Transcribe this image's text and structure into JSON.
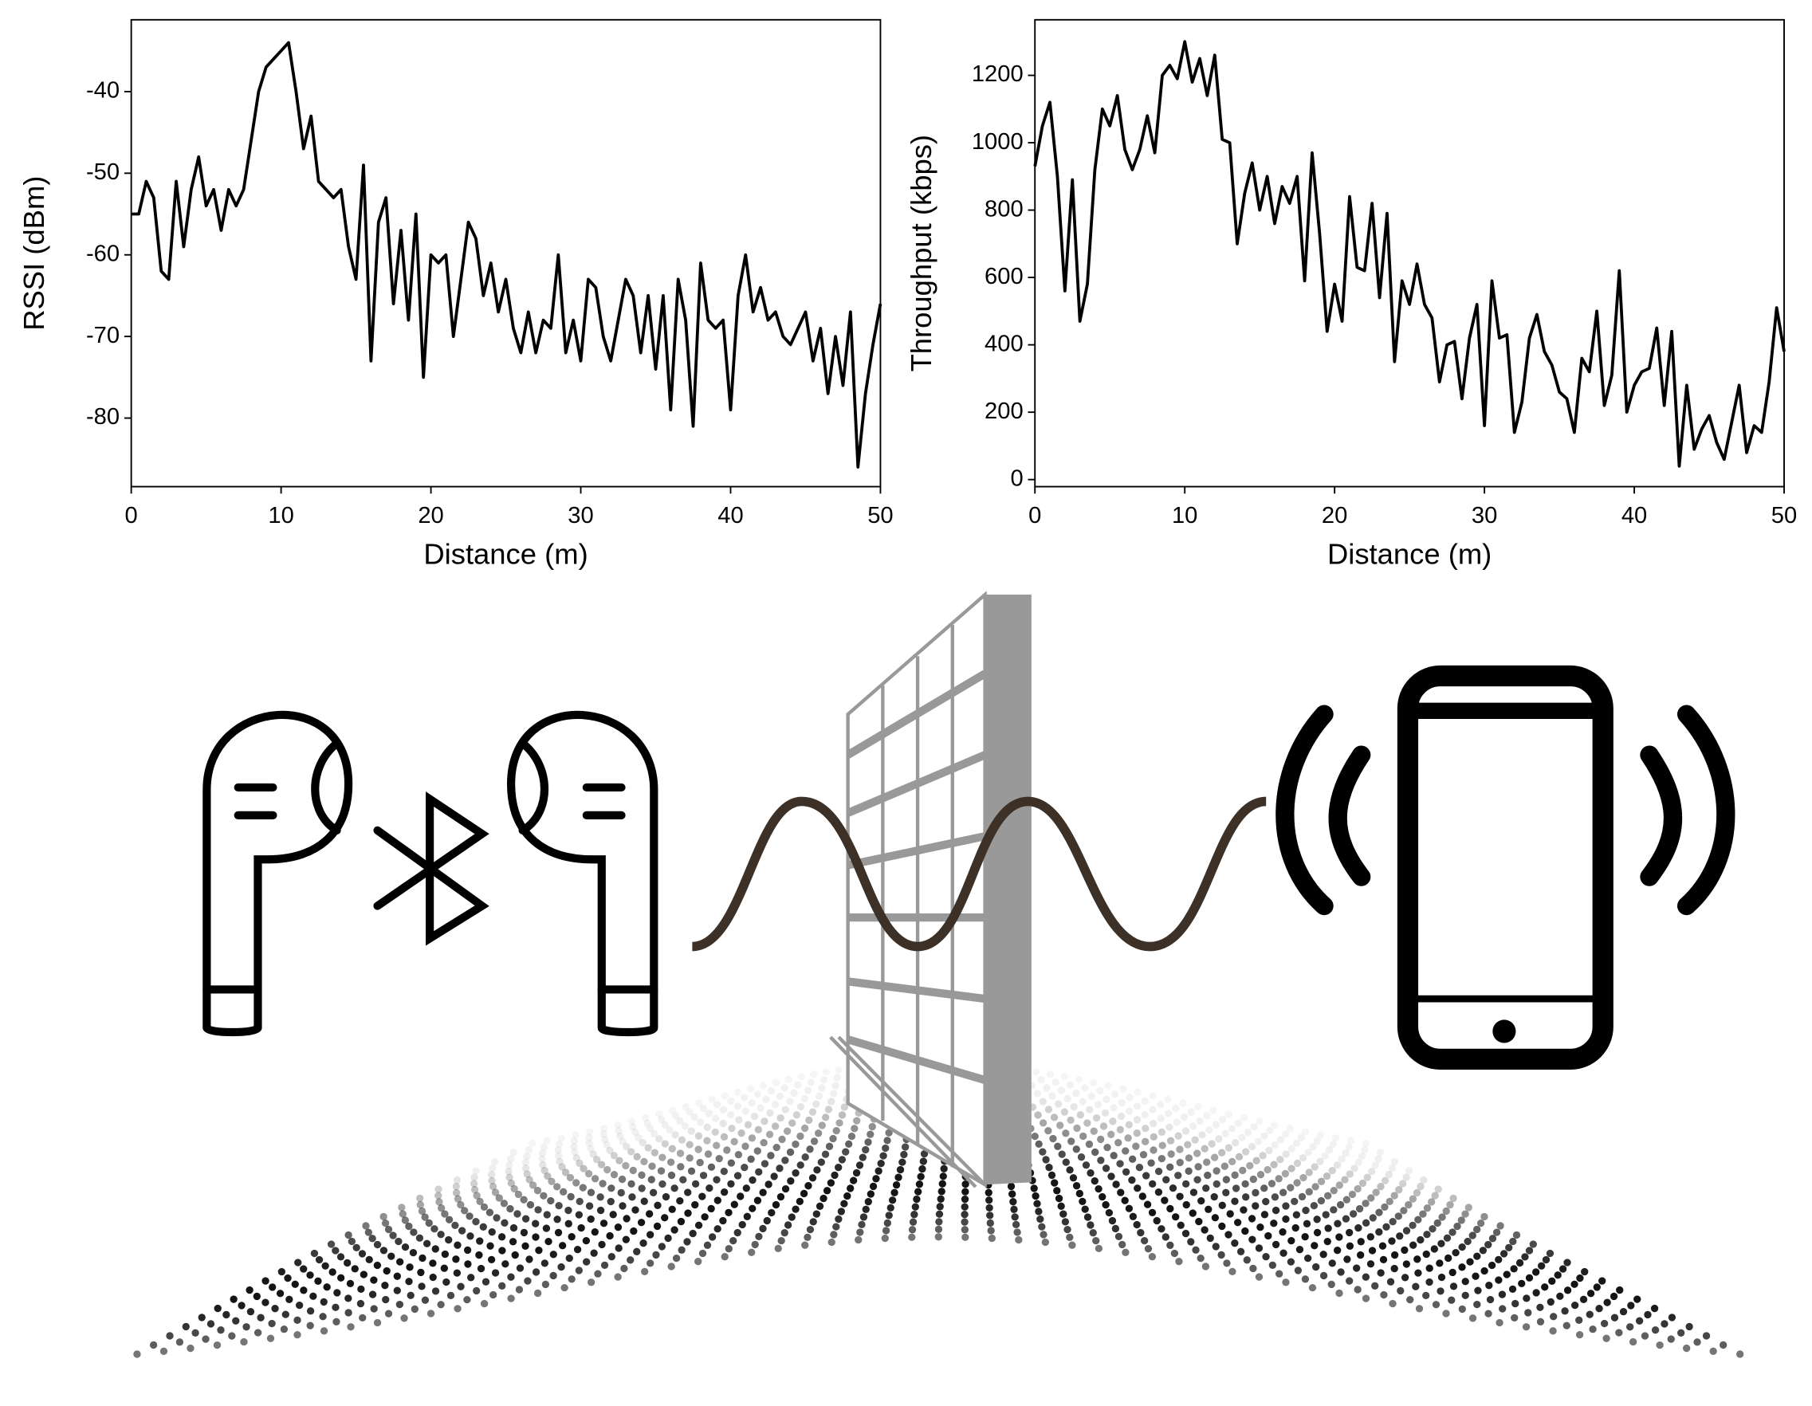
{
  "chart_data": [
    {
      "type": "line",
      "xlabel": "Distance (m)",
      "ylabel": "RSSI (dBm)",
      "xlim": [
        0,
        50
      ],
      "ylim": [
        -88.4,
        -31.2
      ],
      "xticks": [
        0,
        10,
        20,
        30,
        40,
        50
      ],
      "yticks": [
        -80,
        -70,
        -60,
        -50,
        -40
      ],
      "x": [
        0,
        0.5,
        1,
        1.5,
        2,
        2.5,
        3,
        3.5,
        4,
        4.5,
        5,
        5.5,
        6,
        6.5,
        7,
        7.5,
        8,
        8.5,
        9,
        9.5,
        10,
        10.5,
        11,
        11.5,
        12,
        12.5,
        13,
        13.5,
        14,
        14.5,
        15,
        15.5,
        16,
        16.5,
        17,
        17.5,
        18,
        18.5,
        19,
        19.5,
        20,
        20.5,
        21,
        21.5,
        22,
        22.5,
        23,
        23.5,
        24,
        24.5,
        25,
        25.5,
        26,
        26.5,
        27,
        27.5,
        28,
        28.5,
        29,
        29.5,
        30,
        30.5,
        31,
        31.5,
        32,
        32.5,
        33,
        33.5,
        34,
        34.5,
        35,
        35.5,
        36,
        36.5,
        37,
        37.5,
        38,
        38.5,
        39,
        39.5,
        40,
        40.5,
        41,
        41.5,
        42,
        42.5,
        43,
        43.5,
        44,
        44.5,
        45,
        45.5,
        46,
        46.5,
        47,
        47.5,
        48,
        48.5,
        49,
        49.5,
        50
      ],
      "series": [
        {
          "color": "#000000",
          "values": [
            -55,
            -55,
            -51,
            -53,
            -62,
            -63,
            -51,
            -59,
            -52,
            -48,
            -54,
            -52,
            -57,
            -52,
            -54,
            -52,
            -46,
            -40,
            -37,
            -36,
            -35,
            -34,
            -40,
            -47,
            -43,
            -51,
            -52,
            -53,
            -52,
            -59,
            -63,
            -49,
            -73,
            -56,
            -53,
            -66,
            -57,
            -68,
            -55,
            -75,
            -60,
            -61,
            -60,
            -70,
            -63,
            -56,
            -58,
            -65,
            -61,
            -67,
            -63,
            -69,
            -72,
            -67,
            -72,
            -68,
            -69,
            -60,
            -72,
            -68,
            -73,
            -63,
            -64,
            -70,
            -73,
            -68,
            -63,
            -65,
            -72,
            -65,
            -74,
            -65,
            -79,
            -63,
            -68,
            -81,
            -61,
            -68,
            -69,
            -68,
            -79,
            -65,
            -60,
            -67,
            -64,
            -68,
            -67,
            -70,
            -71,
            -69,
            -67,
            -73,
            -69,
            -77,
            -70,
            -76,
            -67,
            -86,
            -77,
            -71,
            -66
          ]
        }
      ]
    },
    {
      "type": "line",
      "xlabel": "Distance (m)",
      "ylabel": "Throughput (kbps)",
      "xlim": [
        0,
        50
      ],
      "ylim": [
        -21,
        1365
      ],
      "xticks": [
        0,
        10,
        20,
        30,
        40,
        50
      ],
      "yticks": [
        0,
        200,
        400,
        600,
        800,
        1000,
        1200
      ],
      "x": [
        0,
        0.5,
        1,
        1.5,
        2,
        2.5,
        3,
        3.5,
        4,
        4.5,
        5,
        5.5,
        6,
        6.5,
        7,
        7.5,
        8,
        8.5,
        9,
        9.5,
        10,
        10.5,
        11,
        11.5,
        12,
        12.5,
        13,
        13.5,
        14,
        14.5,
        15,
        15.5,
        16,
        16.5,
        17,
        17.5,
        18,
        18.5,
        19,
        19.5,
        20,
        20.5,
        21,
        21.5,
        22,
        22.5,
        23,
        23.5,
        24,
        24.5,
        25,
        25.5,
        26,
        26.5,
        27,
        27.5,
        28,
        28.5,
        29,
        29.5,
        30,
        30.5,
        31,
        31.5,
        32,
        32.5,
        33,
        33.5,
        34,
        34.5,
        35,
        35.5,
        36,
        36.5,
        37,
        37.5,
        38,
        38.5,
        39,
        39.5,
        40,
        40.5,
        41,
        41.5,
        42,
        42.5,
        43,
        43.5,
        44,
        44.5,
        45,
        45.5,
        46,
        46.5,
        47,
        47.5,
        48,
        48.5,
        49,
        49.5,
        50
      ],
      "series": [
        {
          "color": "#000000",
          "values": [
            930,
            1050,
            1120,
            900,
            560,
            890,
            470,
            580,
            920,
            1100,
            1050,
            1140,
            980,
            920,
            980,
            1080,
            970,
            1200,
            1230,
            1190,
            1300,
            1180,
            1250,
            1140,
            1260,
            1010,
            1000,
            700,
            850,
            940,
            800,
            900,
            760,
            870,
            820,
            900,
            590,
            970,
            730,
            440,
            580,
            470,
            840,
            630,
            620,
            820,
            540,
            790,
            350,
            590,
            520,
            640,
            520,
            480,
            290,
            400,
            410,
            240,
            420,
            520,
            160,
            590,
            420,
            430,
            140,
            230,
            420,
            490,
            380,
            340,
            260,
            240,
            140,
            360,
            320,
            500,
            220,
            310,
            620,
            200,
            280,
            320,
            330,
            450,
            220,
            440,
            40,
            280,
            90,
            150,
            190,
            110,
            60,
            170,
            280,
            80,
            160,
            140,
            290,
            510,
            380
          ]
        }
      ]
    }
  ]
}
